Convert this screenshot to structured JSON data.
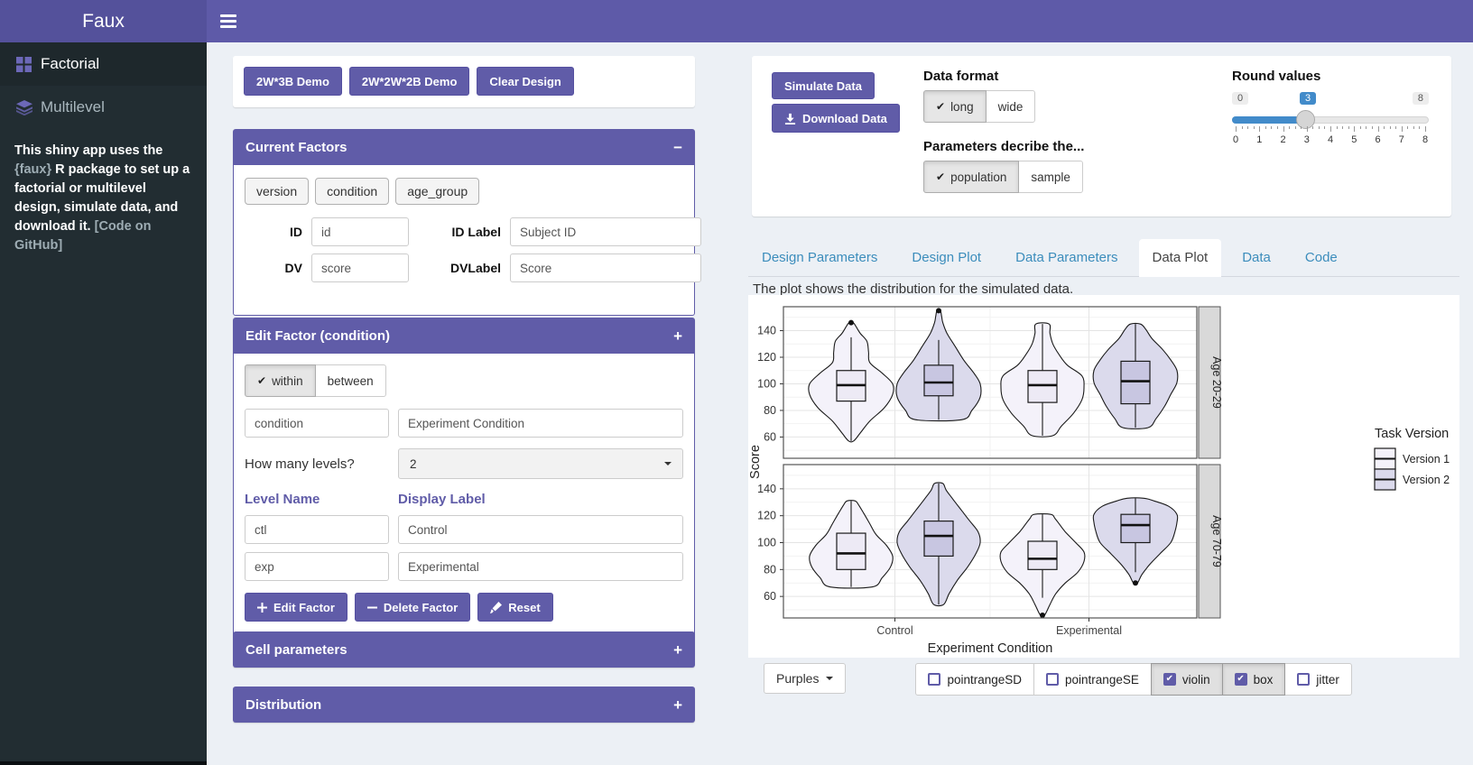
{
  "app": {
    "title": "Faux"
  },
  "sidebar": {
    "items": [
      {
        "label": "Factorial",
        "icon": "grid-icon",
        "active": true
      },
      {
        "label": "Multilevel",
        "icon": "layers-icon",
        "active": false
      }
    ],
    "description": {
      "pre": "This shiny app uses the ",
      "pkg": "{faux}",
      "mid": " R package to set up a factorial or multilevel design, simulate data, and download it. ",
      "link": "[Code on GitHub]"
    }
  },
  "design": {
    "demo_buttons": [
      "2W*3B Demo",
      "2W*2W*2B Demo",
      "Clear Design"
    ],
    "current_factors": {
      "title": "Current Factors",
      "collapse": "−",
      "chips": [
        "version",
        "condition",
        "age_group"
      ],
      "fields": [
        {
          "label": "ID",
          "value": "id"
        },
        {
          "label": "ID Label",
          "value": "Subject ID"
        },
        {
          "label": "DV",
          "value": "score"
        },
        {
          "label": "DVLabel",
          "value": "Score"
        }
      ]
    },
    "edit_factor": {
      "title": "Edit Factor (condition)",
      "collapse": "+",
      "type_toggle": [
        {
          "label": "within",
          "checked": true
        },
        {
          "label": "between",
          "checked": false
        }
      ],
      "name_value": "condition",
      "display_value": "Experiment Condition",
      "levels_label": "How many levels?",
      "levels_value": "2",
      "col_headers": [
        "Level Name",
        "Display Label"
      ],
      "levels": [
        {
          "name": "ctl",
          "label": "Control"
        },
        {
          "name": "exp",
          "label": "Experimental"
        }
      ],
      "buttons": [
        {
          "label": "Edit Factor",
          "icon": "plus-icon"
        },
        {
          "label": "Delete Factor",
          "icon": "minus-icon"
        },
        {
          "label": "Reset",
          "icon": "brush-icon"
        }
      ]
    },
    "collapsed_panels": [
      {
        "title": "Cell parameters",
        "collapse": "+"
      },
      {
        "title": "Distribution",
        "collapse": "+"
      }
    ]
  },
  "simulate": {
    "simulate_button": "Simulate Data",
    "download_button": "Download Data",
    "data_format": {
      "label": "Data format",
      "options": [
        {
          "label": "long",
          "checked": true
        },
        {
          "label": "wide",
          "checked": false
        }
      ]
    },
    "parameters": {
      "label": "Parameters decribe the...",
      "options": [
        {
          "label": "population",
          "checked": true
        },
        {
          "label": "sample",
          "checked": false
        }
      ]
    },
    "round_values": {
      "label": "Round values",
      "min": 0,
      "max": 8,
      "value": 3,
      "ticks": [
        0,
        1,
        2,
        3,
        4,
        5,
        6,
        7,
        8
      ]
    }
  },
  "tabs": [
    {
      "label": "Design Parameters",
      "active": false
    },
    {
      "label": "Design Plot",
      "active": false
    },
    {
      "label": "Data Parameters",
      "active": false
    },
    {
      "label": "Data Plot",
      "active": true
    },
    {
      "label": "Data",
      "active": false
    },
    {
      "label": "Code",
      "active": false
    }
  ],
  "plot_panel": {
    "description": "The plot shows the distribution for the simulated data.",
    "palette_button": "Purples",
    "display_options": [
      {
        "label": "pointrangeSD",
        "checked": false
      },
      {
        "label": "pointrangeSE",
        "checked": false
      },
      {
        "label": "violin",
        "checked": true
      },
      {
        "label": "box",
        "checked": true
      },
      {
        "label": "jitter",
        "checked": false
      }
    ]
  },
  "chart_data": {
    "type": "violin+box",
    "xlabel": "Experiment Condition",
    "ylabel": "Score",
    "x_categories": [
      "Control",
      "Experimental"
    ],
    "facets": [
      "Age 20-29",
      "Age 70-79"
    ],
    "y_ticks": [
      60,
      80,
      100,
      120,
      140
    ],
    "y_minor_ticks": [
      50,
      70,
      90,
      110,
      130,
      150
    ],
    "y_range": [
      44,
      158
    ],
    "grid": true,
    "legend": {
      "title": "Task Version",
      "position": "right",
      "entries": [
        {
          "label": "Version 1",
          "fill": "#f4f2fa",
          "box_fill": "#edeaf5"
        },
        {
          "label": "Version 2",
          "fill": "#dbdaec",
          "box_fill": "#c8c6e1"
        }
      ]
    },
    "groups": [
      {
        "facet": "Age 20-29",
        "x": "Control",
        "series": "Version 1",
        "q1": 87,
        "median": 99,
        "q3": 110,
        "whisker_lo": 57,
        "whisker_hi": 135,
        "outliers": [
          146
        ],
        "profile": [
          [
            57,
            0.06
          ],
          [
            63,
            0.22
          ],
          [
            72,
            0.45
          ],
          [
            82,
            0.8
          ],
          [
            92,
            1
          ],
          [
            100,
            1
          ],
          [
            108,
            0.75
          ],
          [
            116,
            0.45
          ],
          [
            124,
            0.42
          ],
          [
            132,
            0.38
          ],
          [
            138,
            0.22
          ],
          [
            143,
            0.12
          ],
          [
            146,
            0.05
          ]
        ]
      },
      {
        "facet": "Age 20-29",
        "x": "Control",
        "series": "Version 2",
        "q1": 91,
        "median": 101,
        "q3": 114,
        "whisker_lo": 73,
        "whisker_hi": 133,
        "outliers": [
          155
        ],
        "profile": [
          [
            73,
            0.55
          ],
          [
            80,
            0.8
          ],
          [
            90,
            1
          ],
          [
            100,
            1
          ],
          [
            108,
            0.85
          ],
          [
            118,
            0.6
          ],
          [
            128,
            0.4
          ],
          [
            138,
            0.2
          ],
          [
            146,
            0.1
          ],
          [
            151,
            0.07
          ],
          [
            155,
            0.04
          ]
        ]
      },
      {
        "facet": "Age 20-29",
        "x": "Experimental",
        "series": "Version 1",
        "q1": 86,
        "median": 99,
        "q3": 110,
        "whisker_lo": 61,
        "whisker_hi": 145,
        "outliers": [],
        "profile": [
          [
            61,
            0.25
          ],
          [
            68,
            0.45
          ],
          [
            78,
            0.75
          ],
          [
            88,
            0.95
          ],
          [
            97,
            1
          ],
          [
            106,
            0.95
          ],
          [
            114,
            0.6
          ],
          [
            122,
            0.4
          ],
          [
            130,
            0.25
          ],
          [
            138,
            0.18
          ],
          [
            145,
            0.16
          ]
        ]
      },
      {
        "facet": "Age 20-29",
        "x": "Experimental",
        "series": "Version 2",
        "q1": 85,
        "median": 102,
        "q3": 117,
        "whisker_lo": 67,
        "whisker_hi": 145,
        "outliers": [],
        "profile": [
          [
            67,
            0.3
          ],
          [
            74,
            0.5
          ],
          [
            83,
            0.7
          ],
          [
            92,
            0.85
          ],
          [
            101,
            1
          ],
          [
            110,
            1
          ],
          [
            118,
            0.85
          ],
          [
            126,
            0.65
          ],
          [
            134,
            0.4
          ],
          [
            141,
            0.25
          ],
          [
            145,
            0.12
          ]
        ]
      },
      {
        "facet": "Age 70-79",
        "x": "Control",
        "series": "Version 1",
        "q1": 80,
        "median": 92,
        "q3": 107,
        "whisker_lo": 67,
        "whisker_hi": 131,
        "outliers": [],
        "profile": [
          [
            67,
            0.5
          ],
          [
            74,
            0.75
          ],
          [
            82,
            0.95
          ],
          [
            90,
            1
          ],
          [
            98,
            0.85
          ],
          [
            106,
            0.6
          ],
          [
            114,
            0.45
          ],
          [
            122,
            0.3
          ],
          [
            128,
            0.18
          ],
          [
            131,
            0.1
          ]
        ]
      },
      {
        "facet": "Age 70-79",
        "x": "Control",
        "series": "Version 2",
        "q1": 90,
        "median": 105,
        "q3": 116,
        "whisker_lo": 54,
        "whisker_hi": 144,
        "outliers": [],
        "profile": [
          [
            54,
            0.12
          ],
          [
            62,
            0.25
          ],
          [
            72,
            0.45
          ],
          [
            82,
            0.7
          ],
          [
            92,
            0.9
          ],
          [
            100,
            1
          ],
          [
            108,
            0.95
          ],
          [
            116,
            0.75
          ],
          [
            124,
            0.55
          ],
          [
            132,
            0.35
          ],
          [
            139,
            0.18
          ],
          [
            144,
            0.1
          ]
        ]
      },
      {
        "facet": "Age 70-79",
        "x": "Experimental",
        "series": "Version 1",
        "q1": 80,
        "median": 88,
        "q3": 101,
        "whisker_lo": 59,
        "whisker_hi": 121,
        "outliers": [
          46
        ],
        "profile": [
          [
            46,
            0.05
          ],
          [
            54,
            0.18
          ],
          [
            62,
            0.32
          ],
          [
            70,
            0.55
          ],
          [
            78,
            0.85
          ],
          [
            86,
            1
          ],
          [
            93,
            1
          ],
          [
            100,
            0.8
          ],
          [
            108,
            0.55
          ],
          [
            114,
            0.4
          ],
          [
            118,
            0.3
          ],
          [
            121,
            0.2
          ]
        ]
      },
      {
        "facet": "Age 70-79",
        "x": "Experimental",
        "series": "Version 2",
        "q1": 100,
        "median": 113,
        "q3": 121,
        "whisker_lo": 78,
        "whisker_hi": 133,
        "outliers": [
          70
        ],
        "profile": [
          [
            70,
            0.05
          ],
          [
            76,
            0.15
          ],
          [
            84,
            0.35
          ],
          [
            92,
            0.6
          ],
          [
            100,
            0.85
          ],
          [
            108,
            0.95
          ],
          [
            115,
            1
          ],
          [
            121,
            1
          ],
          [
            127,
            0.8
          ],
          [
            131,
            0.45
          ],
          [
            133,
            0.2
          ]
        ]
      }
    ]
  },
  "colors": {
    "purple": "#605ca8",
    "navbar": "#5e5aa8",
    "logo_bg": "#54519b",
    "sidebar_bg": "#222d32",
    "sidebar_active_bg": "#1e282c",
    "page_bg": "#ecf0f5",
    "link_blue": "#3c8dbc",
    "slider_blue": "#428bca",
    "strip_gray": "#d9d9d9",
    "icon_purple": "#6c68b8"
  }
}
